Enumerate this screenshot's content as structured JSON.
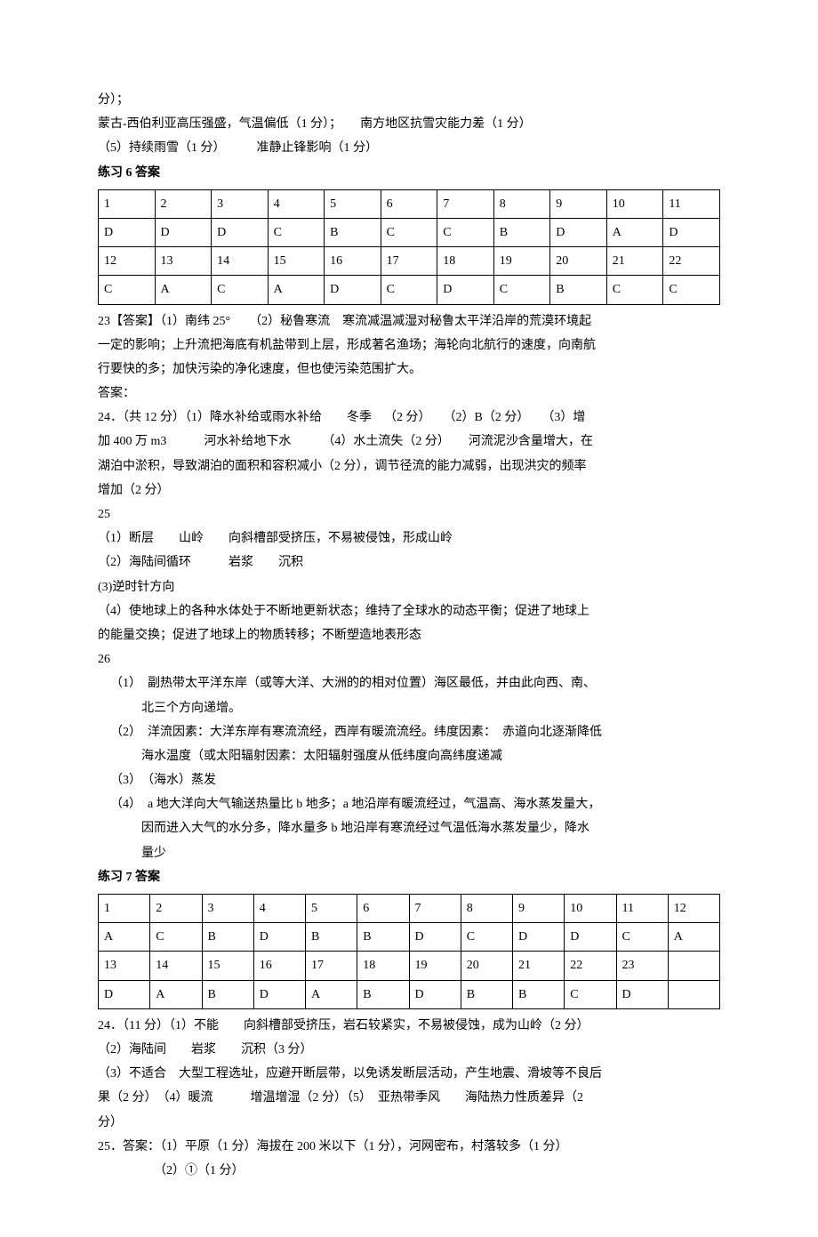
{
  "pre_lines": [
    "分）；",
    "蒙古-西伯利亚高压强盛，气温偏低（1 分）；　　南方地区抗雪灾能力差（1 分）",
    "（5）持续雨雪（1 分）　　　准静止锋影响（1 分）"
  ],
  "section6_title": "练习 6 答案",
  "table6": {
    "rows": [
      [
        "1",
        "2",
        "3",
        "4",
        "5",
        "6",
        "7",
        "8",
        "9",
        "10",
        "11"
      ],
      [
        "D",
        "D",
        "D",
        "C",
        "B",
        "C",
        "C",
        "B",
        "D",
        "A",
        "D"
      ],
      [
        "12",
        "13",
        "14",
        "15",
        "16",
        "17",
        "18",
        "19",
        "20",
        "21",
        "22"
      ],
      [
        "C",
        "A",
        "C",
        "A",
        "D",
        "C",
        "D",
        "C",
        "B",
        "C",
        "C"
      ]
    ],
    "border_color": "#000000",
    "background": "#ffffff",
    "font_size": 14
  },
  "section6_body": [
    {
      "text": "23【答案】（1）南纬 25°　　（2）秘鲁寒流 寒流减温减湿对秘鲁太平洋沿岸的荒漠环境起"
    },
    {
      "text": "一定的影响；上升流把海底有机盐带到上层，形成著名渔场；海轮向北航行的速度，向南航"
    },
    {
      "text": "行要快的多；加快污染的净化速度，但也使污染范围扩大。"
    },
    {
      "text": "答案："
    },
    {
      "text": "24．（共 12 分）（1）降水补给或雨水补给　　冬季 （2 分）　　（2）B（2 分）　　（3）增"
    },
    {
      "text": "加 400 万 m3　　　河水补给地下水　　　（4）水土流失（2 分）　　河流泥沙含量增大，在"
    },
    {
      "text": "湖泊中淤积，导致湖泊的面积和容积减小（2 分），调节径流的能力减弱，出现洪灾的频率"
    },
    {
      "text": "增加（2 分）"
    },
    {
      "text": "25"
    },
    {
      "text": "（1）断层　　山岭　　向斜槽部受挤压，不易被侵蚀，形成山岭"
    },
    {
      "text": "（2）海陆间循环　　　岩浆　　沉积"
    },
    {
      "text": "(3)逆时针方向"
    },
    {
      "text": "（4）使地球上的各种水体处于不断地更新状态；维持了全球水的动态平衡；促进了地球上"
    },
    {
      "text": "的能量交换；促进了地球上的物质转移；不断塑造地表形态"
    },
    {
      "text": "26"
    },
    {
      "text": "（1）　副热带太平洋东岸（或等大洋、大洲的的相对位置）海区最低，并由此向西、南、",
      "indent": true
    },
    {
      "text": "北三个方向递增。",
      "indent2": true
    },
    {
      "text": "（2）　洋流因素：大洋东岸有寒流流经，西岸有暖流流经。纬度因素：　赤道向北逐渐降低",
      "indent": true
    },
    {
      "text": "海水温度（或太阳辐射因素：太阳辐射强度从低纬度向高纬度递减",
      "indent2": true
    },
    {
      "text": "（3）　（海水）蒸发",
      "indent": true
    },
    {
      "text": "（4）　a 地大洋向大气输送热量比 b 地多；a 地沿岸有暖流经过，气温高、海水蒸发量大，",
      "indent": true
    },
    {
      "text": "因而进入大气的水分多，降水量多 b 地沿岸有寒流经过气温低海水蒸发量少，降水",
      "indent2": true
    },
    {
      "text": "量少",
      "indent2": true
    }
  ],
  "section7_title": "练习 7 答案",
  "table7": {
    "rows": [
      [
        "1",
        "2",
        "3",
        "4",
        "5",
        "6",
        "7",
        "8",
        "9",
        "10",
        "11",
        "12"
      ],
      [
        "A",
        "C",
        "B",
        "D",
        "B",
        "B",
        "D",
        "C",
        "D",
        "D",
        "C",
        "A"
      ],
      [
        "13",
        "14",
        "15",
        "16",
        "17",
        "18",
        "19",
        "20",
        "21",
        "22",
        "23",
        ""
      ],
      [
        "D",
        "A",
        "B",
        "D",
        "A",
        "B",
        "D",
        "B",
        "B",
        "C",
        "D",
        ""
      ]
    ],
    "border_color": "#000000",
    "background": "#ffffff",
    "font_size": 14
  },
  "section7_body": [
    "24．（11 分）（1）不能　　向斜槽部受挤压，岩石较紧实，不易被侵蚀，成为山岭（2 分）",
    "（2）海陆间　　岩浆　　沉积（3 分）",
    "（3）不适合 大型工程选址，应避开断层带，以免诱发断层活动，产生地震、滑坡等不良后",
    "果（2 分）　（4）暖流　　　增温增湿（2 分）（5）　亚热带季风　　海陆热力性质差异（2",
    "分）",
    "25．答案：（1）平原（1 分）海拔在 200 米以下（1 分），河网密布，村落较多（1 分）",
    "　　　　　（2）①（1 分）"
  ],
  "colors": {
    "text": "#000000",
    "background": "#ffffff",
    "table_border": "#000000"
  },
  "typography": {
    "font_family": "SimSun",
    "base_font_size": 14,
    "line_height": 1.8
  }
}
